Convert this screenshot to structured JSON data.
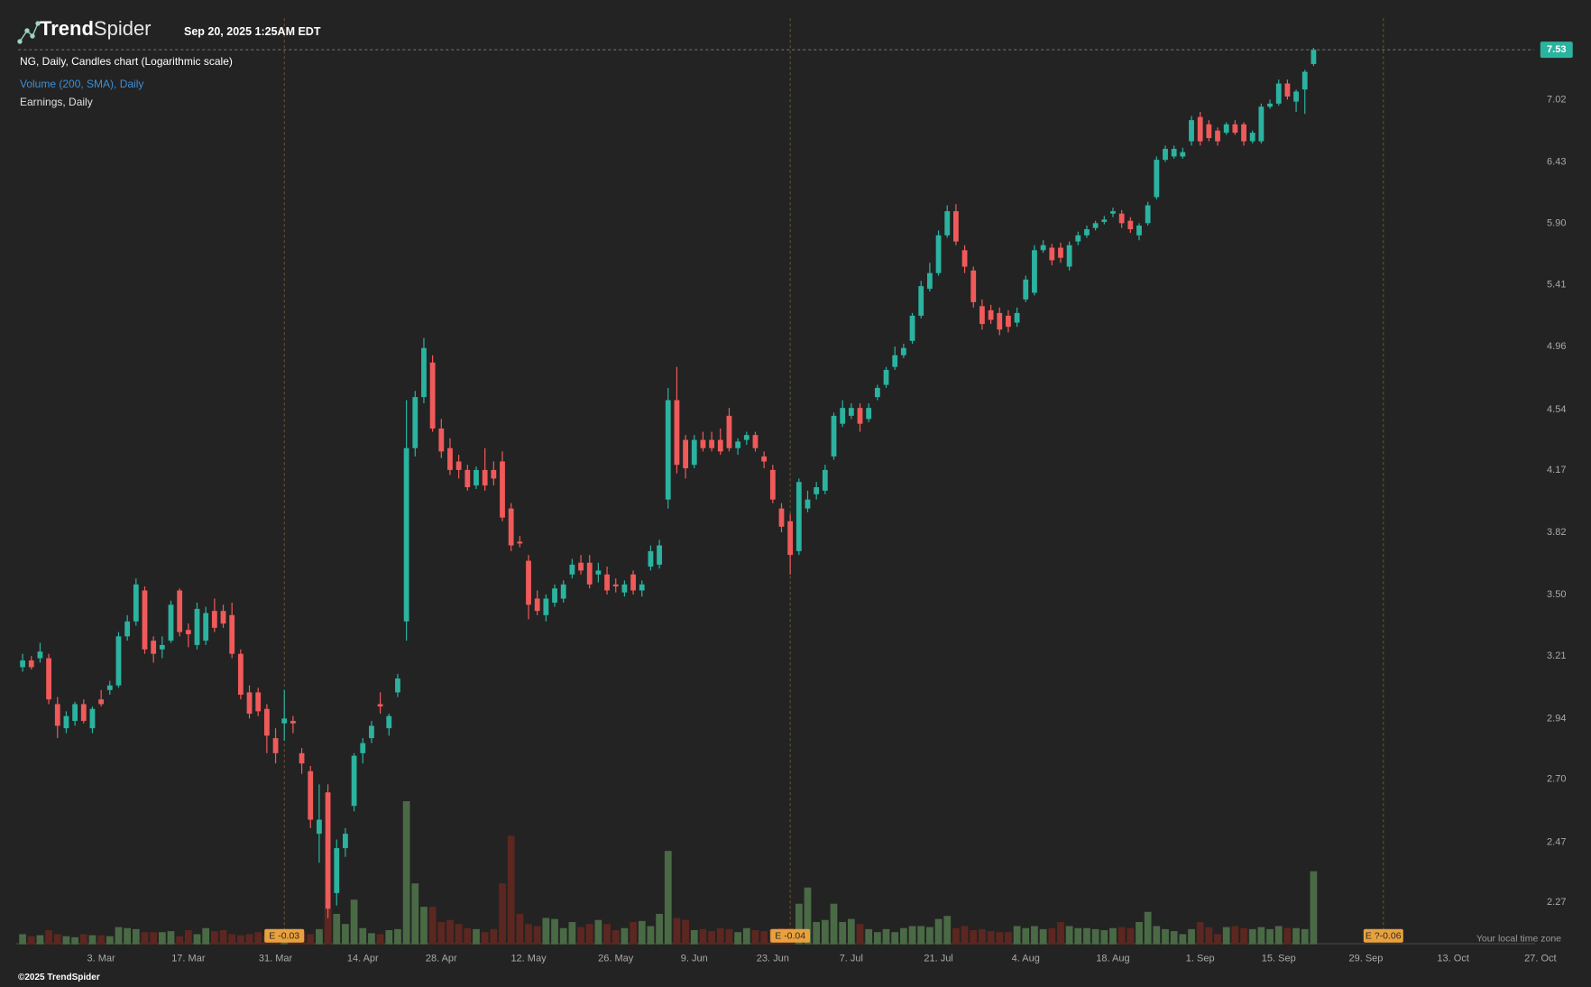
{
  "header": {
    "brand_bold": "Trend",
    "brand_light": "Spider",
    "timestamp": "Sep 20, 2025 1:25AM EDT",
    "legend_price": "NG, Daily, Candles chart (Logarithmic scale)",
    "legend_volume": "Volume (200, SMA), Daily",
    "legend_earnings": "Earnings, Daily",
    "timezone_note": "Your local time zone",
    "copyright": "©2025 TrendSpider"
  },
  "chart_data": {
    "type": "candlestick",
    "log_scale": true,
    "grid": false,
    "up_color": "#2bb3a0",
    "down_color": "#f05a5a",
    "volume_up_color": "#4a6a46",
    "volume_down_color": "#5c2720",
    "ylim": [
      2.14,
      7.87
    ],
    "yticks": [
      2.27,
      2.47,
      {
        "value": 2.7,
        "label": "2.70"
      },
      2.94,
      3.21,
      {
        "value": 3.5,
        "label": "3.50"
      },
      3.82,
      4.17,
      4.54,
      4.96,
      5.41,
      {
        "value": 5.9,
        "label": "5.90"
      },
      6.43,
      7.02
    ],
    "volume_lim": [
      0,
      30
    ],
    "categories": [
      null,
      null,
      null,
      null,
      null,
      null,
      null,
      null,
      null,
      "3. Mar",
      null,
      null,
      null,
      null,
      null,
      null,
      null,
      null,
      null,
      "17. Mar",
      null,
      null,
      null,
      null,
      null,
      null,
      null,
      null,
      null,
      "31. Mar",
      null,
      null,
      null,
      null,
      null,
      null,
      null,
      null,
      null,
      "14. Apr",
      null,
      null,
      null,
      null,
      null,
      null,
      null,
      null,
      "28. Apr",
      null,
      null,
      null,
      null,
      null,
      null,
      null,
      null,
      null,
      "12. May",
      null,
      null,
      null,
      null,
      null,
      null,
      null,
      null,
      null,
      "26. May",
      null,
      null,
      null,
      null,
      null,
      null,
      null,
      null,
      "9. Jun",
      null,
      null,
      null,
      null,
      null,
      null,
      null,
      null,
      "23. Jun",
      null,
      null,
      null,
      null,
      null,
      null,
      null,
      null,
      "7. Jul",
      null,
      null,
      null,
      null,
      null,
      null,
      null,
      null,
      null,
      "21. Jul",
      null,
      null,
      null,
      null,
      null,
      null,
      null,
      null,
      null,
      "4. Aug",
      null,
      null,
      null,
      null,
      null,
      null,
      null,
      null,
      null,
      "18. Aug",
      null,
      null,
      null,
      null,
      null,
      null,
      null,
      null,
      null,
      "1. Sep",
      null,
      null,
      null,
      null,
      null,
      null,
      null,
      null,
      "15. Sep",
      null,
      null,
      null,
      null,
      null,
      null,
      null,
      null,
      null,
      "29. Sep",
      null,
      null,
      null,
      null,
      null,
      null,
      null,
      null,
      null,
      "13. Oct",
      null,
      null,
      null,
      null,
      null,
      null,
      null,
      null,
      null,
      "27. Oct",
      null
    ],
    "candles": [
      [
        3.16,
        3.22,
        3.14,
        3.19
      ],
      [
        3.19,
        3.21,
        3.15,
        3.16
      ],
      [
        3.2,
        3.27,
        3.18,
        3.23
      ],
      [
        3.2,
        3.22,
        3.0,
        3.02
      ],
      [
        3.0,
        3.03,
        2.86,
        2.91
      ],
      [
        2.9,
        2.97,
        2.88,
        2.95
      ],
      [
        2.93,
        3.01,
        2.91,
        3.0
      ],
      [
        3.0,
        3.02,
        2.92,
        2.93
      ],
      [
        2.9,
        2.99,
        2.88,
        2.98
      ],
      [
        3.02,
        3.06,
        2.99,
        3.0
      ],
      [
        3.06,
        3.1,
        3.04,
        3.08
      ],
      [
        3.08,
        3.32,
        3.07,
        3.3
      ],
      [
        3.3,
        3.4,
        3.28,
        3.37
      ],
      [
        3.37,
        3.58,
        3.35,
        3.55
      ],
      [
        3.52,
        3.54,
        3.22,
        3.24
      ],
      [
        3.28,
        3.3,
        3.18,
        3.22
      ],
      [
        3.24,
        3.3,
        3.2,
        3.26
      ],
      [
        3.28,
        3.47,
        3.27,
        3.45
      ],
      [
        3.52,
        3.53,
        3.3,
        3.32
      ],
      [
        3.33,
        3.36,
        3.25,
        3.31
      ],
      [
        3.26,
        3.46,
        3.24,
        3.43
      ],
      [
        3.28,
        3.44,
        3.26,
        3.41
      ],
      [
        3.42,
        3.48,
        3.32,
        3.34
      ],
      [
        3.42,
        3.45,
        3.34,
        3.36
      ],
      [
        3.4,
        3.46,
        3.2,
        3.22
      ],
      [
        3.22,
        3.24,
        3.02,
        3.04
      ],
      [
        3.05,
        3.08,
        2.94,
        2.96
      ],
      [
        3.05,
        3.07,
        2.95,
        2.97
      ],
      [
        2.98,
        3.0,
        2.8,
        2.87
      ],
      [
        2.86,
        2.9,
        2.76,
        2.8
      ],
      [
        2.92,
        3.06,
        2.85,
        2.94
      ],
      [
        2.93,
        2.95,
        2.88,
        2.92
      ],
      [
        2.8,
        2.82,
        2.72,
        2.76
      ],
      [
        2.73,
        2.75,
        2.52,
        2.55
      ],
      [
        2.5,
        2.68,
        2.4,
        2.55
      ],
      [
        2.65,
        2.68,
        2.22,
        2.25
      ],
      [
        2.3,
        2.48,
        2.26,
        2.45
      ],
      [
        2.45,
        2.52,
        2.42,
        2.5
      ],
      [
        2.6,
        2.8,
        2.58,
        2.79
      ],
      [
        2.8,
        2.86,
        2.76,
        2.84
      ],
      [
        2.86,
        2.93,
        2.84,
        2.91
      ],
      [
        3.0,
        3.05,
        2.96,
        2.99
      ],
      [
        2.9,
        2.96,
        2.87,
        2.95
      ],
      [
        3.05,
        3.13,
        3.03,
        3.11
      ],
      [
        3.37,
        4.6,
        3.28,
        4.3
      ],
      [
        4.3,
        4.66,
        4.25,
        4.62
      ],
      [
        4.62,
        5.02,
        4.58,
        4.95
      ],
      [
        4.85,
        4.9,
        4.4,
        4.42
      ],
      [
        4.42,
        4.48,
        4.24,
        4.28
      ],
      [
        4.3,
        4.36,
        4.14,
        4.17
      ],
      [
        4.22,
        4.26,
        4.12,
        4.17
      ],
      [
        4.17,
        4.2,
        4.05,
        4.07
      ],
      [
        4.08,
        4.19,
        4.06,
        4.17
      ],
      [
        4.17,
        4.3,
        4.05,
        4.08
      ],
      [
        4.17,
        4.22,
        4.08,
        4.12
      ],
      [
        4.22,
        4.28,
        3.88,
        3.9
      ],
      [
        3.95,
        3.98,
        3.72,
        3.75
      ],
      [
        3.77,
        3.8,
        3.74,
        3.76
      ],
      [
        3.67,
        3.7,
        3.38,
        3.45
      ],
      [
        3.48,
        3.52,
        3.4,
        3.42
      ],
      [
        3.4,
        3.5,
        3.37,
        3.48
      ],
      [
        3.46,
        3.55,
        3.44,
        3.53
      ],
      [
        3.48,
        3.57,
        3.46,
        3.55
      ],
      [
        3.6,
        3.68,
        3.58,
        3.65
      ],
      [
        3.66,
        3.7,
        3.6,
        3.62
      ],
      [
        3.66,
        3.7,
        3.53,
        3.55
      ],
      [
        3.6,
        3.66,
        3.56,
        3.62
      ],
      [
        3.6,
        3.64,
        3.5,
        3.52
      ],
      [
        3.55,
        3.58,
        3.51,
        3.54
      ],
      [
        3.51,
        3.57,
        3.49,
        3.55
      ],
      [
        3.6,
        3.62,
        3.5,
        3.52
      ],
      [
        3.52,
        3.57,
        3.49,
        3.55
      ],
      [
        3.64,
        3.75,
        3.62,
        3.72
      ],
      [
        3.65,
        3.78,
        3.63,
        3.75
      ],
      [
        4.0,
        4.68,
        3.95,
        4.6
      ],
      [
        4.6,
        4.82,
        4.15,
        4.2
      ],
      [
        4.35,
        4.38,
        4.12,
        4.18
      ],
      [
        4.2,
        4.38,
        4.18,
        4.35
      ],
      [
        4.35,
        4.4,
        4.28,
        4.3
      ],
      [
        4.35,
        4.4,
        4.28,
        4.3
      ],
      [
        4.35,
        4.42,
        4.26,
        4.28
      ],
      [
        4.5,
        4.55,
        4.28,
        4.3
      ],
      [
        4.3,
        4.36,
        4.26,
        4.34
      ],
      [
        4.35,
        4.4,
        4.32,
        4.38
      ],
      [
        4.38,
        4.4,
        4.28,
        4.3
      ],
      [
        4.25,
        4.28,
        4.18,
        4.22
      ],
      [
        4.17,
        4.2,
        3.98,
        4.0
      ],
      [
        3.95,
        3.98,
        3.82,
        3.85
      ],
      [
        3.88,
        3.92,
        3.6,
        3.7
      ],
      [
        3.72,
        4.12,
        3.7,
        4.1
      ],
      [
        3.95,
        4.05,
        3.93,
        4.0
      ],
      [
        4.03,
        4.1,
        4.0,
        4.07
      ],
      [
        4.05,
        4.2,
        4.03,
        4.17
      ],
      [
        4.25,
        4.52,
        4.23,
        4.5
      ],
      [
        4.45,
        4.6,
        4.43,
        4.55
      ],
      [
        4.5,
        4.58,
        4.48,
        4.55
      ],
      [
        4.55,
        4.58,
        4.4,
        4.45
      ],
      [
        4.48,
        4.58,
        4.46,
        4.55
      ],
      [
        4.62,
        4.7,
        4.6,
        4.68
      ],
      [
        4.7,
        4.82,
        4.68,
        4.8
      ],
      [
        4.82,
        4.96,
        4.8,
        4.9
      ],
      [
        4.9,
        4.98,
        4.88,
        4.95
      ],
      [
        5.0,
        5.2,
        4.98,
        5.18
      ],
      [
        5.18,
        5.44,
        5.16,
        5.4
      ],
      [
        5.38,
        5.58,
        5.36,
        5.5
      ],
      [
        5.5,
        5.84,
        5.48,
        5.8
      ],
      [
        5.8,
        6.05,
        5.78,
        6.0
      ],
      [
        6.0,
        6.06,
        5.72,
        5.75
      ],
      [
        5.68,
        5.72,
        5.5,
        5.55
      ],
      [
        5.52,
        5.55,
        5.24,
        5.28
      ],
      [
        5.25,
        5.3,
        5.08,
        5.12
      ],
      [
        5.22,
        5.26,
        5.12,
        5.15
      ],
      [
        5.2,
        5.24,
        5.04,
        5.08
      ],
      [
        5.18,
        5.22,
        5.06,
        5.1
      ],
      [
        5.13,
        5.24,
        5.1,
        5.2
      ],
      [
        5.3,
        5.48,
        5.28,
        5.45
      ],
      [
        5.35,
        5.72,
        5.33,
        5.68
      ],
      [
        5.68,
        5.76,
        5.66,
        5.72
      ],
      [
        5.7,
        5.73,
        5.56,
        5.6
      ],
      [
        5.7,
        5.74,
        5.58,
        5.62
      ],
      [
        5.55,
        5.75,
        5.52,
        5.72
      ],
      [
        5.75,
        5.83,
        5.72,
        5.8
      ],
      [
        5.8,
        5.88,
        5.78,
        5.85
      ],
      [
        5.86,
        5.92,
        5.84,
        5.9
      ],
      [
        5.91,
        5.96,
        5.89,
        5.93
      ],
      [
        5.98,
        6.03,
        5.95,
        6.0
      ],
      [
        5.98,
        6.01,
        5.86,
        5.9
      ],
      [
        5.92,
        5.95,
        5.82,
        5.85
      ],
      [
        5.8,
        5.9,
        5.76,
        5.88
      ],
      [
        5.9,
        6.08,
        5.88,
        6.05
      ],
      [
        6.12,
        6.48,
        6.1,
        6.45
      ],
      [
        6.45,
        6.58,
        6.43,
        6.55
      ],
      [
        6.48,
        6.58,
        6.46,
        6.55
      ],
      [
        6.48,
        6.56,
        6.46,
        6.52
      ],
      [
        6.62,
        6.86,
        6.58,
        6.82
      ],
      [
        6.85,
        6.9,
        6.58,
        6.62
      ],
      [
        6.78,
        6.82,
        6.62,
        6.65
      ],
      [
        6.72,
        6.75,
        6.58,
        6.62
      ],
      [
        6.7,
        6.8,
        6.68,
        6.78
      ],
      [
        6.78,
        6.82,
        6.68,
        6.7
      ],
      [
        6.78,
        6.8,
        6.58,
        6.62
      ],
      [
        6.62,
        6.72,
        6.6,
        6.7
      ],
      [
        6.62,
        6.98,
        6.6,
        6.95
      ],
      [
        6.95,
        7.02,
        6.93,
        6.98
      ],
      [
        6.98,
        7.22,
        6.96,
        7.18
      ],
      [
        7.18,
        7.22,
        7.02,
        7.05
      ],
      [
        7.0,
        7.12,
        6.9,
        7.1
      ],
      [
        7.12,
        7.32,
        6.88,
        7.3
      ],
      [
        7.38,
        7.55,
        7.36,
        7.53
      ],
      null,
      null,
      null,
      null,
      null,
      null,
      null,
      null,
      null,
      null,
      null,
      null,
      null,
      null,
      null,
      null,
      null,
      null,
      null,
      null,
      null,
      null,
      null,
      null,
      null,
      null,
      null
    ],
    "volume": [
      1.0,
      0.8,
      0.9,
      1.4,
      1.0,
      0.8,
      0.7,
      1.0,
      0.9,
      0.9,
      0.8,
      1.7,
      1.6,
      1.5,
      1.2,
      1.2,
      1.2,
      1.3,
      0.8,
      1.4,
      1.0,
      1.6,
      1.3,
      1.4,
      1.0,
      0.9,
      1.0,
      1.2,
      0.9,
      1.0,
      1.1,
      1.0,
      1.2,
      1.0,
      1.5,
      3.5,
      3.0,
      2.0,
      4.4,
      1.6,
      1.1,
      1.0,
      1.4,
      1.5,
      14.1,
      6.0,
      3.7,
      3.7,
      2.2,
      2.4,
      2.0,
      1.6,
      1.5,
      1.2,
      1.5,
      6.0,
      10.7,
      3.0,
      2.0,
      1.8,
      2.6,
      2.5,
      1.6,
      2.2,
      1.7,
      2.0,
      2.4,
      2.0,
      1.4,
      1.6,
      2.2,
      2.3,
      1.8,
      3.0,
      9.2,
      2.6,
      2.4,
      1.4,
      1.5,
      1.3,
      1.6,
      1.5,
      1.2,
      1.6,
      1.4,
      1.3,
      1.5,
      1.6,
      1.6,
      4.0,
      5.6,
      2.2,
      2.4,
      4.0,
      2.2,
      2.5,
      2.0,
      1.5,
      1.2,
      1.5,
      1.2,
      1.6,
      1.8,
      1.8,
      1.7,
      2.5,
      2.8,
      1.6,
      1.8,
      1.4,
      1.5,
      1.3,
      1.2,
      1.2,
      1.8,
      1.6,
      1.8,
      1.5,
      1.6,
      2.2,
      1.8,
      1.6,
      1.6,
      1.5,
      1.4,
      1.6,
      1.7,
      1.6,
      2.2,
      3.2,
      1.8,
      1.5,
      1.3,
      1.0,
      1.5,
      2.2,
      1.7,
      1.0,
      1.7,
      1.8,
      1.6,
      1.5,
      1.7,
      1.5,
      1.8,
      1.6,
      1.6,
      1.5,
      7.2,
      null,
      null,
      null,
      null,
      null,
      null,
      null,
      null,
      null,
      null,
      null,
      null,
      null,
      null,
      null,
      null,
      null,
      null,
      null,
      null,
      null,
      null,
      null,
      null,
      null,
      null,
      null
    ],
    "earnings": [
      {
        "x": 30,
        "label": "E -0.03"
      },
      {
        "x": 88,
        "label": "E -0.04"
      },
      {
        "x": 156,
        "label": "E ?-0.06"
      }
    ]
  }
}
